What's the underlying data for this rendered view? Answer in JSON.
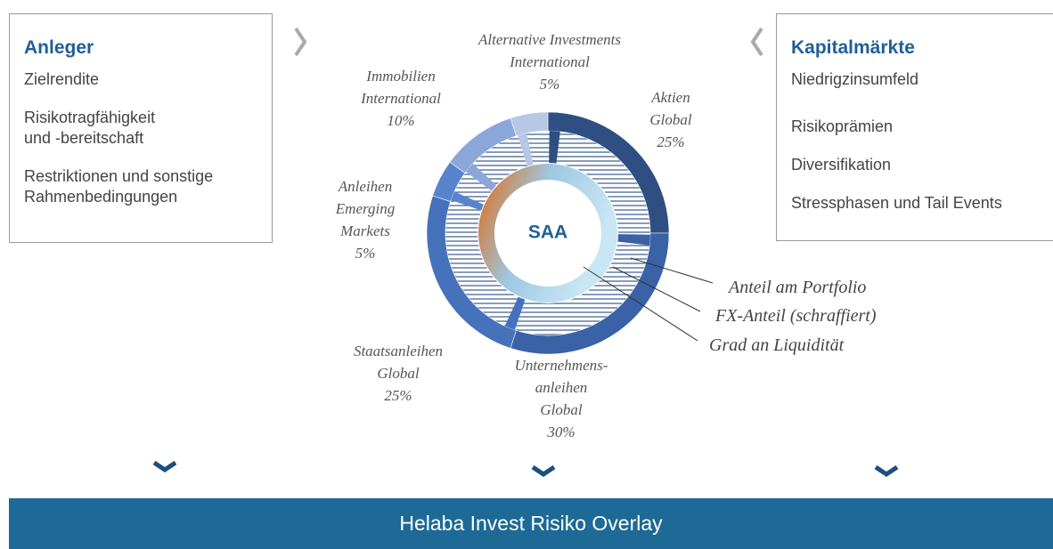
{
  "left_box": {
    "title": "Anleger",
    "items": [
      "Zielrendite",
      "Risikotragfähigkeit\nund -bereitschaft",
      "Restriktionen und sonstige\nRahmenbedingungen"
    ]
  },
  "right_box": {
    "title": "Kapitalmärkte",
    "items": [
      "Niedrigzinsumfeld",
      "Risikoprämien",
      "Diversifikation",
      "Stressphasen und Tail Events"
    ]
  },
  "chart_data": {
    "type": "donut",
    "center_label": "SAA",
    "categories": [
      "Aktien\nGlobal",
      "Unternehmens-\nanleihen\nGlobal",
      "Staatsanleihen\nGlobal",
      "Anleihen\nEmerging\nMarkets",
      "Immobilien\nInternational",
      "Alternative Investments\nInternational"
    ],
    "values": [
      25,
      30,
      25,
      5,
      10,
      5
    ],
    "value_labels": [
      "25%",
      "30%",
      "25%",
      "5%",
      "10%",
      "5%"
    ],
    "colors": [
      "#2f4f82",
      "#3a62a6",
      "#4672bb",
      "#5884cd",
      "#8ba7da",
      "#b7c7e6"
    ],
    "ring_labels": [
      "Anteil am Portfolio",
      "FX-Anteil (schraffiert)",
      "Grad an Liquidität"
    ]
  },
  "banner": "Helaba Invest Risiko Overlay"
}
